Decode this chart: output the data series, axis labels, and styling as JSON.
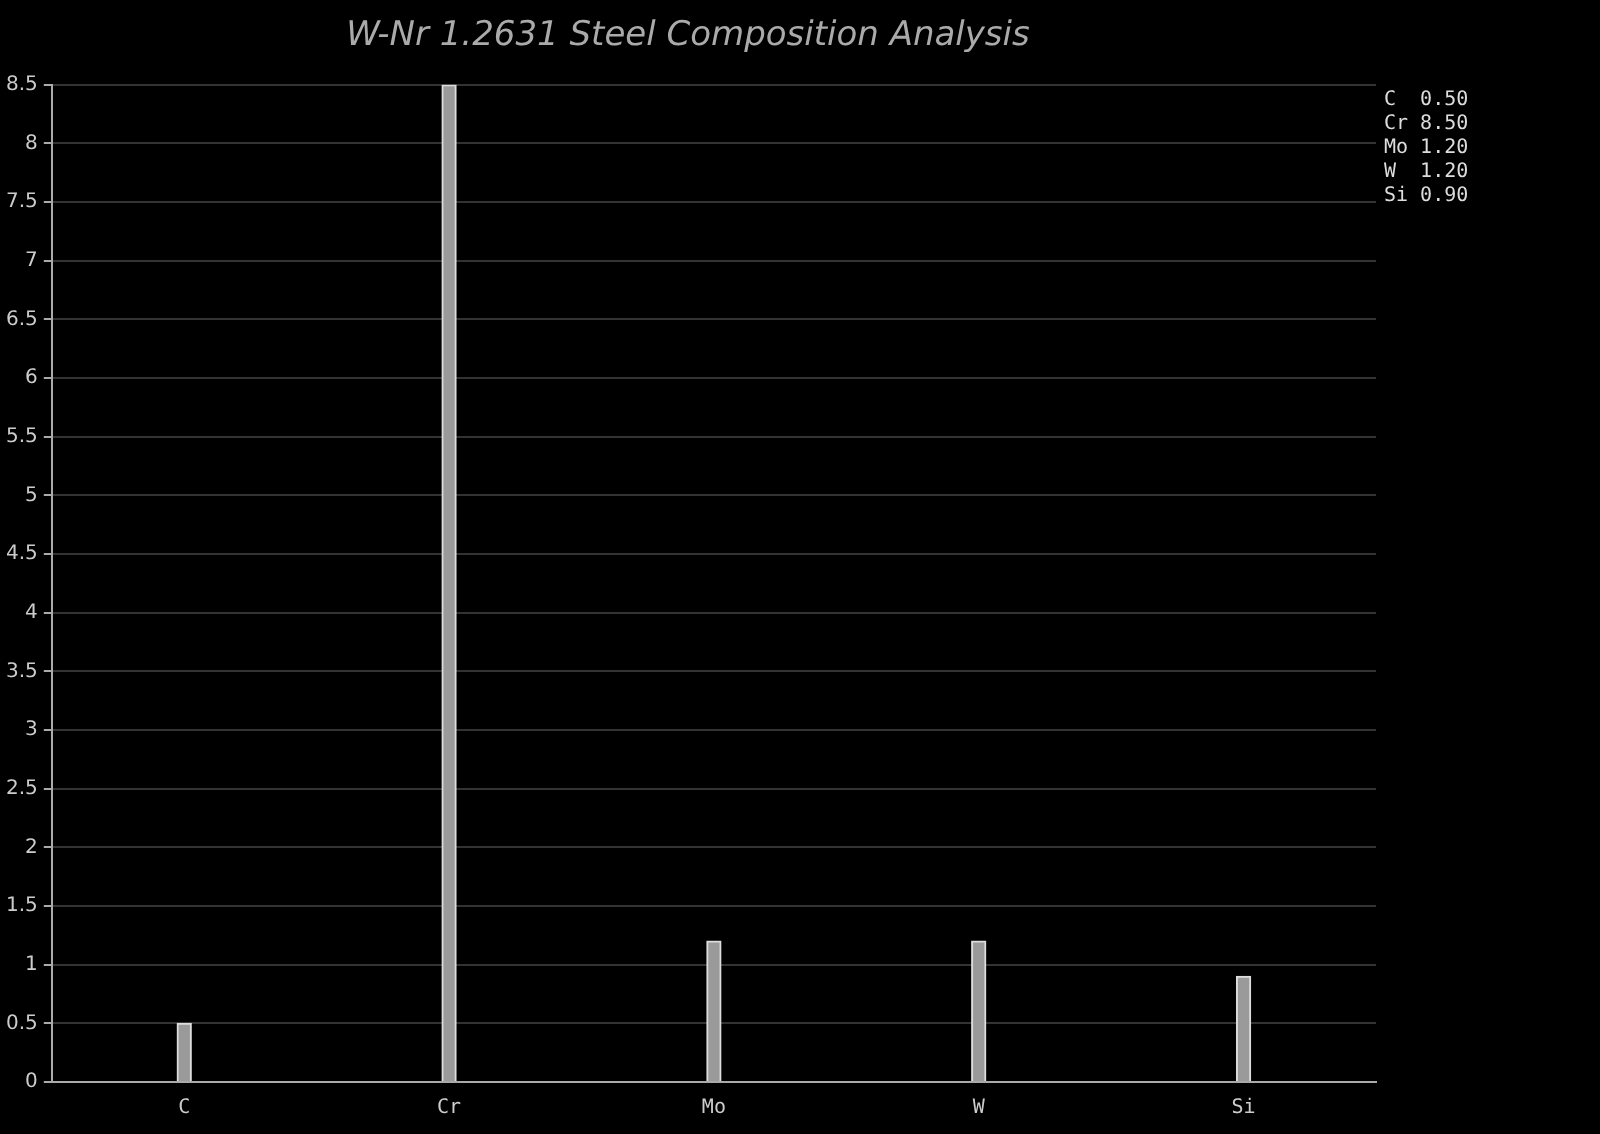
{
  "chart_data": {
    "type": "bar",
    "title": "W-Nr 1.2631 Steel Composition Analysis",
    "categories": [
      "C",
      "Cr",
      "Mo",
      "W",
      "Si"
    ],
    "values": [
      0.5,
      8.5,
      1.2,
      1.2,
      0.9
    ],
    "annotations": [
      "C  0.50",
      "Cr 8.50",
      "Mo 1.20",
      "W  1.20",
      "Si 0.90"
    ],
    "color": "#9a9a9a",
    "ylim": [
      0,
      8.5
    ],
    "yticks": [
      0,
      0.5,
      1,
      1.5,
      2,
      2.5,
      3,
      3.5,
      4,
      4.5,
      5,
      5.5,
      6,
      6.5,
      7,
      7.5,
      8,
      8.5
    ],
    "grid": "y"
  }
}
